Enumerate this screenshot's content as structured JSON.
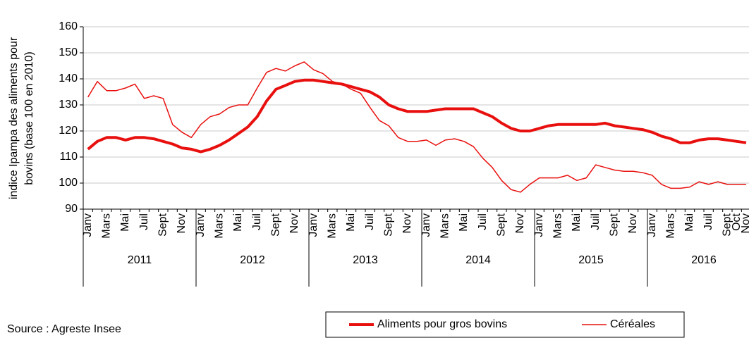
{
  "chart_data": {
    "type": "line",
    "ylabel_lines": [
      "indice Ipampa des aliments pour",
      "bovins (base 100 en 2010)"
    ],
    "source": "Source : Agreste Insee",
    "categories": [
      "Janv",
      null,
      "Mars",
      null,
      "Mai",
      null,
      "Juil",
      null,
      "Sept",
      null,
      "Nov",
      null,
      "Janv",
      null,
      "Mars",
      null,
      "Mai",
      null,
      "Juil",
      null,
      "Sept",
      null,
      "Nov",
      null,
      "Janv",
      null,
      "Mars",
      null,
      "Mai",
      null,
      "Juil",
      null,
      "Sept",
      null,
      "Nov",
      null,
      "Janv",
      null,
      "Mars",
      null,
      "Mai",
      null,
      "Juil",
      null,
      "Sept",
      null,
      "Nov",
      null,
      "Janv",
      null,
      "Mars",
      null,
      "Mai",
      null,
      "Juil",
      null,
      "Sept",
      null,
      "Nov",
      null,
      "Janv",
      null,
      "Mars",
      null,
      "Mai",
      null,
      "Juil",
      null,
      "Sept",
      "Oct",
      "Nov"
    ],
    "groups": [
      "2011",
      "2012",
      "2013",
      "2014",
      "2015",
      "2016"
    ],
    "series": [
      {
        "name": "Aliments pour gros bovins",
        "color": "#e8100e",
        "width": 4,
        "values": [
          113,
          116,
          117.5,
          117.5,
          116.5,
          117.5,
          117.5,
          117,
          116,
          115,
          113.5,
          113,
          112,
          113,
          114.5,
          116.5,
          119,
          121.5,
          125.5,
          131.5,
          136,
          137.5,
          139,
          139.5,
          139.5,
          139,
          138.5,
          138,
          137,
          136,
          135,
          133,
          130,
          128.5,
          127.5,
          127.5,
          127.5,
          128,
          128.5,
          128.5,
          128.5,
          128.5,
          127,
          125.5,
          123,
          121,
          120,
          120,
          121,
          122,
          122.5,
          122.5,
          122.5,
          122.5,
          122.5,
          123,
          122,
          121.5,
          121,
          120.5,
          119.5,
          118,
          117,
          115.5,
          115.5,
          116.5,
          117,
          117,
          116.5,
          116,
          115.5
        ]
      },
      {
        "name": "Céréales",
        "color": "#e8100e",
        "width": 1.5,
        "values": [
          133,
          139,
          135.5,
          135.5,
          136.5,
          138,
          132.5,
          133.5,
          132.5,
          122.5,
          119.5,
          117.5,
          122.5,
          125.5,
          126.5,
          129,
          130,
          130,
          136.5,
          142.5,
          144,
          143,
          145,
          146.5,
          143.5,
          142,
          139,
          138,
          136,
          134.5,
          129,
          124,
          122,
          117.5,
          116,
          116,
          116.5,
          114.5,
          116.5,
          117,
          116,
          114,
          109.5,
          106,
          101,
          97.5,
          96.5,
          99.5,
          102,
          102,
          102,
          103,
          101,
          102,
          107,
          106,
          105,
          104.5,
          104.5,
          104,
          103,
          99.5,
          98,
          98,
          98.5,
          100.5,
          99.5,
          100.5,
          99.5,
          99.5,
          99.5
        ]
      }
    ],
    "ylim": [
      90,
      160
    ],
    "yticks": [
      90,
      100,
      110,
      120,
      130,
      140,
      150,
      160
    ],
    "grid": true
  }
}
